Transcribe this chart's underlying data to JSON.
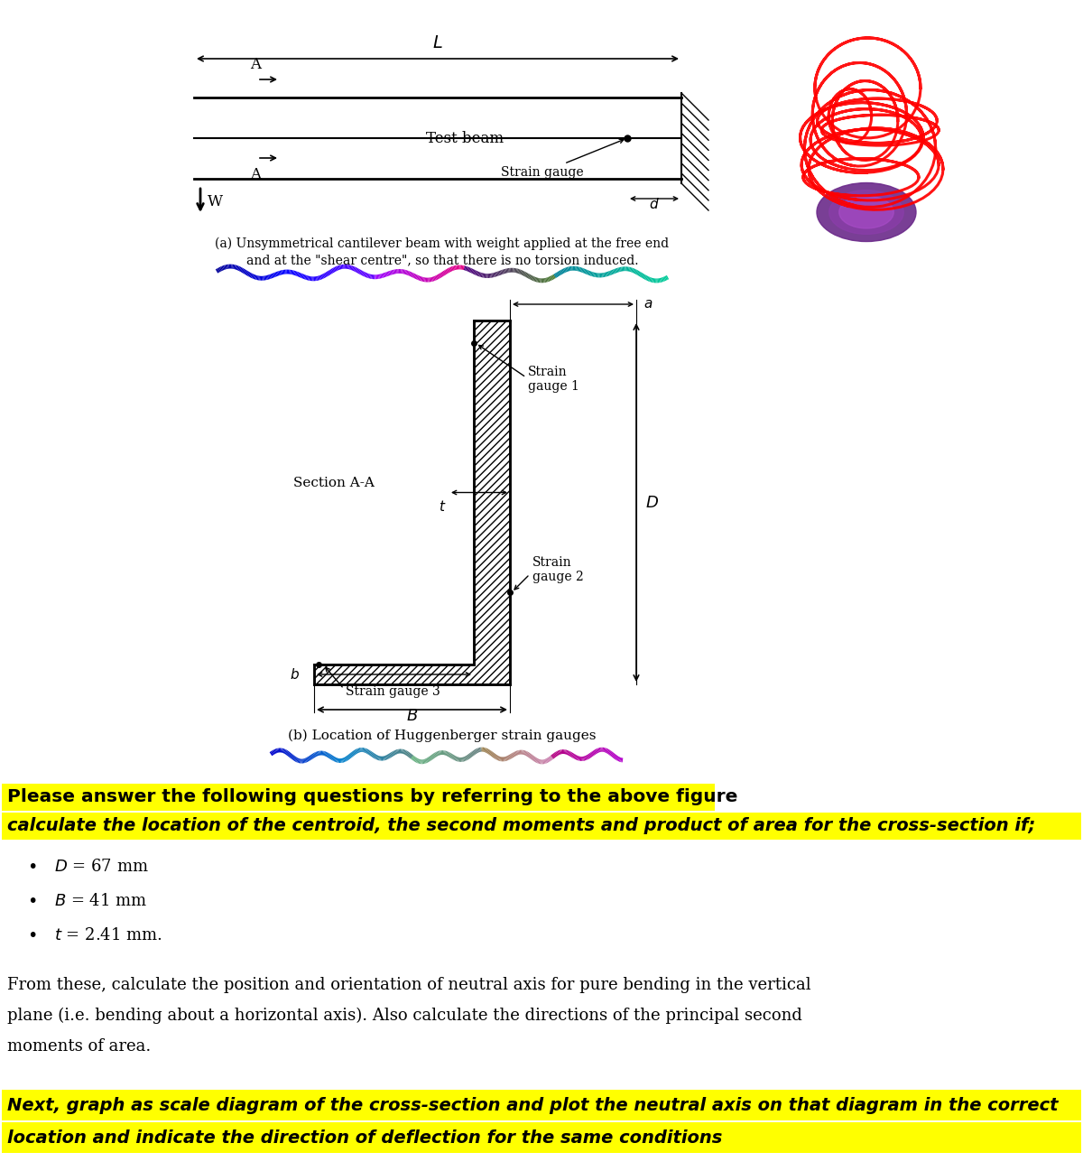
{
  "background_color": "#ffffff",
  "highlight_yellow": "#FFFF00",
  "fig_a_caption_line1": "(a) Unsymmetrical cantilever beam with weight applied at the free end",
  "fig_a_caption_line2": "and at the \"shear centre\", so that there is no torsion induced.",
  "fig_b_caption": "(b) Location of Huggenberger strain gauges",
  "question_line1": "Please answer the following questions by referring to the above figure",
  "question_line2": "calculate the location of the centroid, the second moments and product of area for the cross-section if;",
  "paragraph_line1": "From these, calculate the position and orientation of neutral axis for pure bending in the vertical",
  "paragraph_line2": "plane (i.e. bending about a horizontal axis). Also calculate the directions of the principal second",
  "paragraph_line3": "moments of area.",
  "last_line1": "Next, graph as scale diagram of the cross-section and plot the neutral axis on that diagram in the correct",
  "last_line2": "location and indicate the direction of deflection for the same conditions"
}
